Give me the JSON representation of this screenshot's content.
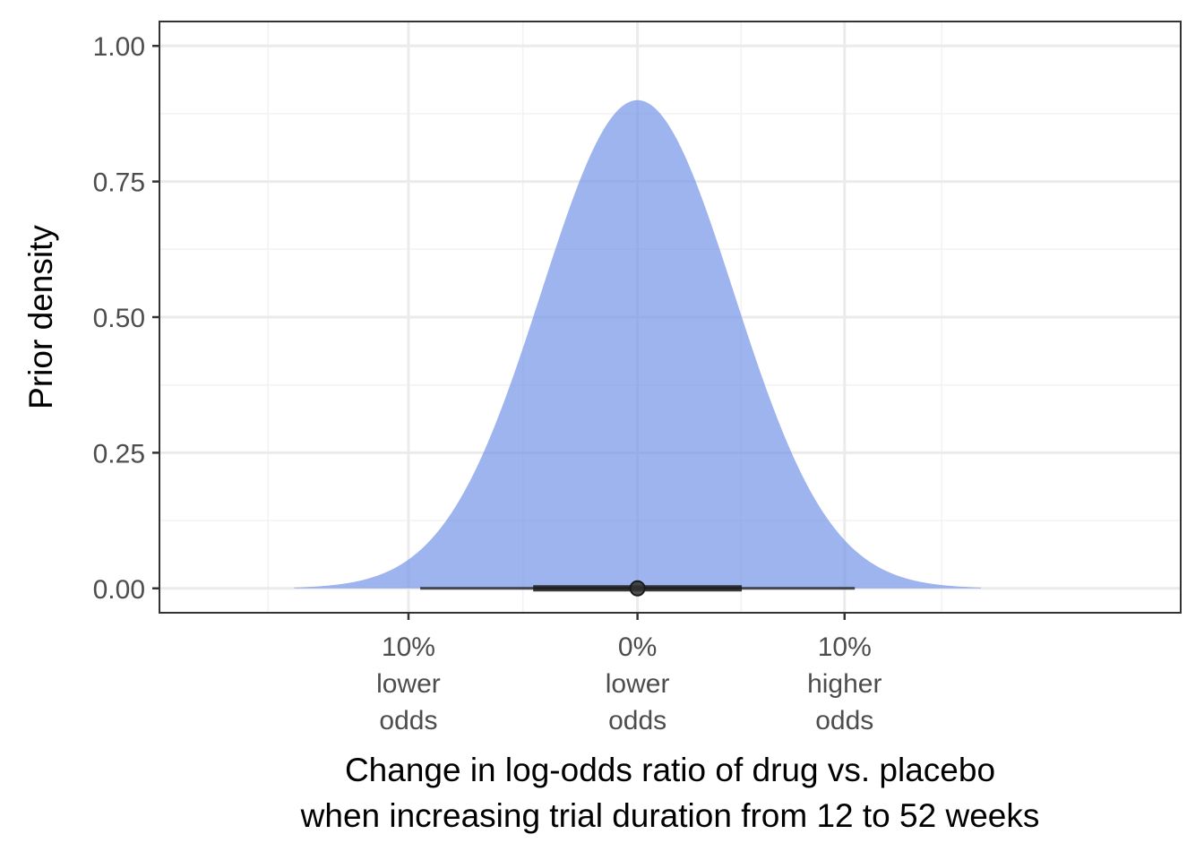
{
  "chart_data": {
    "type": "area",
    "title": "",
    "xlabel": {
      "line1": "Change in log-odds ratio of drug vs. placebo",
      "line2": "when increasing trial duration from 12 to 52 weeks"
    },
    "ylabel": "Prior density",
    "xlim": [
      -0.22,
      0.25
    ],
    "ylim": [
      -0.045,
      1.045
    ],
    "y_ticks": [
      {
        "value": 0.0,
        "label": "0.00"
      },
      {
        "value": 0.25,
        "label": "0.25"
      },
      {
        "value": 0.5,
        "label": "0.50"
      },
      {
        "value": 0.75,
        "label": "0.75"
      },
      {
        "value": 1.0,
        "label": "1.00"
      }
    ],
    "x_ticks": [
      {
        "value": -0.1054,
        "lines": [
          "10%",
          "lower",
          "odds"
        ]
      },
      {
        "value": 0.0,
        "lines": [
          "0%",
          "lower",
          "odds"
        ]
      },
      {
        "value": 0.0953,
        "lines": [
          "10%",
          "higher",
          "odds"
        ]
      }
    ],
    "x_minor_gridlines": [
      -0.17,
      -0.0527,
      0.0477,
      0.14
    ],
    "y_minor_gridlines": [
      0.125,
      0.375,
      0.625,
      0.875
    ],
    "density": {
      "distribution": "normal",
      "mean": 0.0,
      "sd": 0.0443,
      "x_range": [
        -0.158,
        0.158
      ],
      "peak_density": 0.9,
      "fill_color": "#6e8fe6",
      "fill_opacity": 0.67
    },
    "interval_summary": {
      "point": 0.0,
      "inner_interval": [
        -0.048,
        0.048
      ],
      "outer_interval": [
        -0.1,
        0.1
      ]
    },
    "grid": true,
    "colors": {
      "panel_border": "#333333",
      "grid_major": "#ebebeb",
      "grid_minor": "#f2f2f2",
      "interval": "#1a1a1a"
    }
  }
}
